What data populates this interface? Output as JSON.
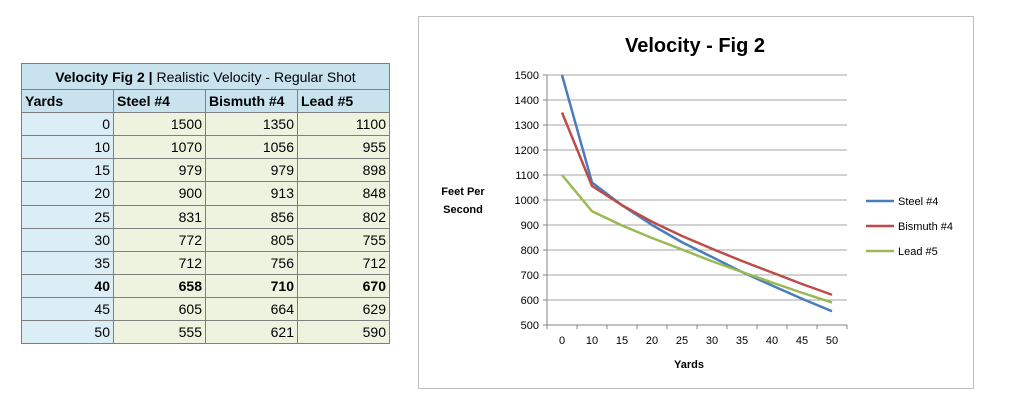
{
  "table": {
    "title_bold": "Velocity Fig 2",
    "title_sep": "|",
    "title_rest": "Realistic Velocity - Regular Shot",
    "headers": [
      "Yards",
      "Steel #4",
      "Bismuth #4",
      "Lead #5"
    ],
    "rows": [
      [
        "0",
        "1500",
        "1350",
        "1100"
      ],
      [
        "10",
        "1070",
        "1056",
        "955"
      ],
      [
        "15",
        "979",
        "979",
        "898"
      ],
      [
        "20",
        "900",
        "913",
        "848"
      ],
      [
        "25",
        "831",
        "856",
        "802"
      ],
      [
        "30",
        "772",
        "805",
        "755"
      ],
      [
        "35",
        "712",
        "756",
        "712"
      ],
      [
        "40",
        "658",
        "710",
        "670"
      ],
      [
        "45",
        "605",
        "664",
        "629"
      ],
      [
        "50",
        "555",
        "621",
        "590"
      ]
    ]
  },
  "chart_data": {
    "type": "line",
    "title": "Velocity - Fig 2",
    "xlabel": "Yards",
    "ylabel": "Feet Per Second",
    "categories": [
      "0",
      "10",
      "15",
      "20",
      "25",
      "30",
      "35",
      "40",
      "45",
      "50"
    ],
    "ylim": [
      500,
      1500
    ],
    "yticks": [
      500,
      600,
      700,
      800,
      900,
      1000,
      1100,
      1200,
      1300,
      1400,
      1500
    ],
    "grid": true,
    "legend_position": "right",
    "series": [
      {
        "name": "Steel #4",
        "color": "#4a7ebb",
        "values": [
          1500,
          1070,
          979,
          900,
          831,
          772,
          712,
          658,
          605,
          555
        ]
      },
      {
        "name": "Bismuth #4",
        "color": "#be4b48",
        "values": [
          1350,
          1056,
          979,
          913,
          856,
          805,
          756,
          710,
          664,
          621
        ]
      },
      {
        "name": "Lead #5",
        "color": "#98b954",
        "values": [
          1100,
          955,
          898,
          848,
          802,
          755,
          712,
          670,
          629,
          590
        ]
      }
    ]
  }
}
